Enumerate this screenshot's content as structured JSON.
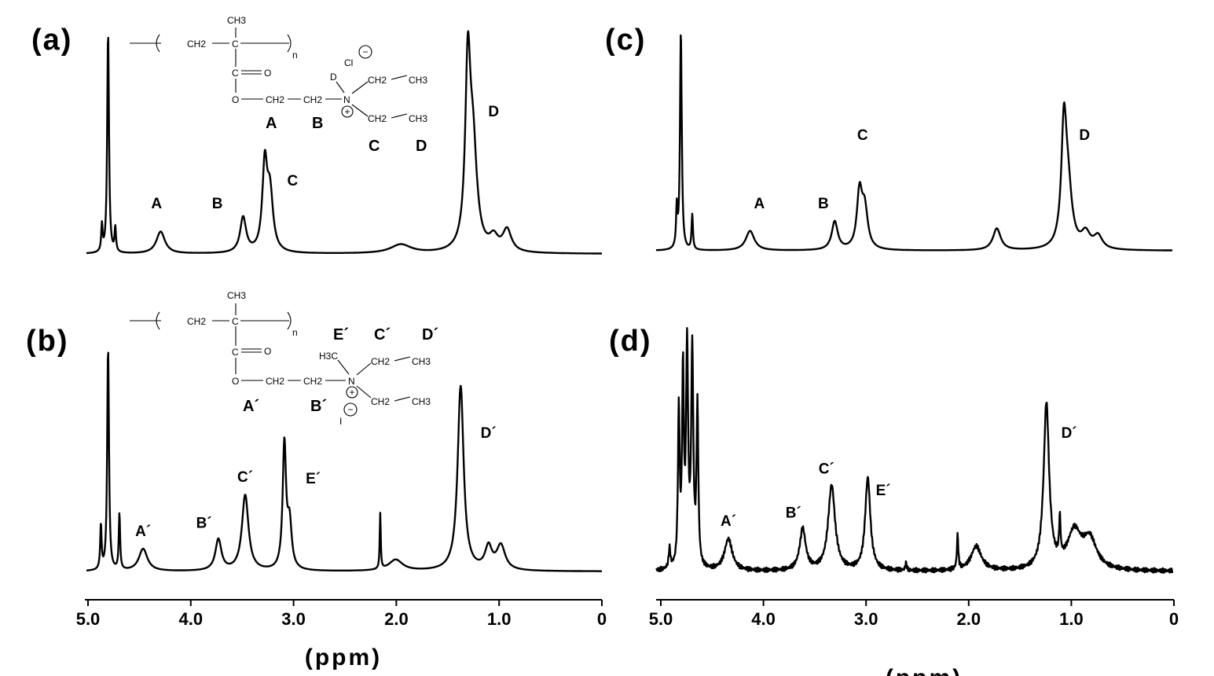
{
  "axis": {
    "title": "(ppm)",
    "ticks": [
      "5.0",
      "4.0",
      "3.0",
      "2.0",
      "1.0",
      "0"
    ],
    "tick_values": [
      5,
      4,
      3,
      2,
      1,
      0
    ]
  },
  "structures": {
    "a": {
      "ch3": "CH3",
      "ch2": "CH2",
      "c": "C",
      "n_sub": "n",
      "o_carbonyl": "O",
      "o_ester": "O",
      "n_atom": "N",
      "d_atom": "D",
      "ethyl_ch2": "CH2",
      "ethyl_ch3": "CH3",
      "counterion": "Cl",
      "plus": "+",
      "minus": "−",
      "letters": [
        "A",
        "B",
        "C",
        "D"
      ]
    },
    "b": {
      "ch3": "CH3",
      "ch2": "CH2",
      "c": "C",
      "n_sub": "n",
      "o_carbonyl": "O",
      "o_ester": "O",
      "n_atom": "N",
      "methyl": "H3C",
      "ethyl_ch2": "CH2",
      "ethyl_ch3": "CH3",
      "counterion": "I",
      "plus": "+",
      "minus": "−",
      "letters": [
        "E´",
        "C´",
        "D´",
        "A´",
        "B´"
      ]
    }
  },
  "chart_data": [
    {
      "panel": "(a)",
      "type": "line",
      "title": "",
      "xlabel": "",
      "ylabel": "",
      "xlim": [
        5.0,
        0
      ],
      "peaks": [
        {
          "ppm": 4.85,
          "height": 0.12,
          "width": 0.008
        },
        {
          "ppm": 4.79,
          "height": 1.0,
          "width": 0.01
        },
        {
          "ppm": 4.72,
          "height": 0.11,
          "width": 0.008
        },
        {
          "ppm": 4.28,
          "height": 0.1,
          "width": 0.05
        },
        {
          "ppm": 3.48,
          "height": 0.16,
          "width": 0.035
        },
        {
          "ppm": 3.27,
          "height": 0.38,
          "width": 0.028
        },
        {
          "ppm": 3.22,
          "height": 0.26,
          "width": 0.035
        },
        {
          "ppm": 1.95,
          "height": 0.04,
          "width": 0.12
        },
        {
          "ppm": 1.3,
          "height": 0.8,
          "width": 0.03
        },
        {
          "ppm": 1.25,
          "height": 0.45,
          "width": 0.045
        },
        {
          "ppm": 1.05,
          "height": 0.06,
          "width": 0.05
        },
        {
          "ppm": 0.92,
          "height": 0.1,
          "width": 0.05
        }
      ],
      "labels": [
        {
          "text": "A",
          "ppm": 4.32
        },
        {
          "text": "B",
          "ppm": 3.73
        },
        {
          "text": "C",
          "ppm": 3.0
        },
        {
          "text": "D",
          "ppm": 1.05
        }
      ]
    },
    {
      "panel": "(c)",
      "type": "line",
      "title": "",
      "xlabel": "",
      "ylabel": "",
      "xlim": [
        5.0,
        0
      ],
      "peaks": [
        {
          "ppm": 4.8,
          "height": 0.18,
          "width": 0.008
        },
        {
          "ppm": 4.76,
          "height": 1.0,
          "width": 0.01
        },
        {
          "ppm": 4.65,
          "height": 0.16,
          "width": 0.008
        },
        {
          "ppm": 4.09,
          "height": 0.09,
          "width": 0.05
        },
        {
          "ppm": 3.27,
          "height": 0.13,
          "width": 0.035
        },
        {
          "ppm": 3.03,
          "height": 0.25,
          "width": 0.03
        },
        {
          "ppm": 2.98,
          "height": 0.18,
          "width": 0.035
        },
        {
          "ppm": 1.7,
          "height": 0.1,
          "width": 0.045
        },
        {
          "ppm": 1.05,
          "height": 0.53,
          "width": 0.03
        },
        {
          "ppm": 1.01,
          "height": 0.25,
          "width": 0.045
        },
        {
          "ppm": 0.84,
          "height": 0.07,
          "width": 0.05
        },
        {
          "ppm": 0.72,
          "height": 0.06,
          "width": 0.05
        }
      ],
      "labels": [
        {
          "text": "A",
          "ppm": 4.0
        },
        {
          "text": "B",
          "ppm": 3.38
        },
        {
          "text": "C",
          "ppm": 3.0
        },
        {
          "text": "D",
          "ppm": 0.85
        }
      ]
    },
    {
      "panel": "(b)",
      "type": "line",
      "title": "",
      "xlabel": "",
      "ylabel": "",
      "xlim": [
        5.0,
        0
      ],
      "peaks": [
        {
          "ppm": 4.86,
          "height": 0.2,
          "width": 0.008
        },
        {
          "ppm": 4.79,
          "height": 1.0,
          "width": 0.01
        },
        {
          "ppm": 4.68,
          "height": 0.25,
          "width": 0.008
        },
        {
          "ppm": 4.45,
          "height": 0.1,
          "width": 0.05
        },
        {
          "ppm": 3.72,
          "height": 0.14,
          "width": 0.035
        },
        {
          "ppm": 3.46,
          "height": 0.34,
          "width": 0.038
        },
        {
          "ppm": 3.08,
          "height": 0.56,
          "width": 0.02
        },
        {
          "ppm": 3.03,
          "height": 0.2,
          "width": 0.025
        },
        {
          "ppm": 2.15,
          "height": 0.25,
          "width": 0.006
        },
        {
          "ppm": 2.0,
          "height": 0.05,
          "width": 0.08
        },
        {
          "ppm": 1.37,
          "height": 0.83,
          "width": 0.035
        },
        {
          "ppm": 1.1,
          "height": 0.1,
          "width": 0.04
        },
        {
          "ppm": 0.98,
          "height": 0.11,
          "width": 0.05
        }
      ],
      "labels": [
        {
          "text": "A´",
          "ppm": 4.45
        },
        {
          "text": "B´",
          "ppm": 3.86
        },
        {
          "text": "C´",
          "ppm": 3.46
        },
        {
          "text": "E´",
          "ppm": 2.8
        },
        {
          "text": "D´",
          "ppm": 1.1
        }
      ]
    },
    {
      "panel": "(d)",
      "type": "line",
      "title": "",
      "xlabel": "",
      "ylabel": "",
      "xlim": [
        5.0,
        0
      ],
      "peaks": [
        {
          "ppm": 4.87,
          "height": 0.08,
          "width": 0.01
        },
        {
          "ppm": 4.78,
          "height": 0.64,
          "width": 0.01
        },
        {
          "ppm": 4.74,
          "height": 0.78,
          "width": 0.01
        },
        {
          "ppm": 4.7,
          "height": 0.88,
          "width": 0.012
        },
        {
          "ppm": 4.65,
          "height": 0.88,
          "width": 0.012
        },
        {
          "ppm": 4.6,
          "height": 0.65,
          "width": 0.01
        },
        {
          "ppm": 4.3,
          "height": 0.13,
          "width": 0.045
        },
        {
          "ppm": 3.58,
          "height": 0.17,
          "width": 0.035
        },
        {
          "ppm": 3.3,
          "height": 0.35,
          "width": 0.04
        },
        {
          "ppm": 2.95,
          "height": 0.38,
          "width": 0.03
        },
        {
          "ppm": 2.58,
          "height": 0.03,
          "width": 0.008
        },
        {
          "ppm": 2.08,
          "height": 0.14,
          "width": 0.008
        },
        {
          "ppm": 1.9,
          "height": 0.1,
          "width": 0.06
        },
        {
          "ppm": 1.22,
          "height": 0.68,
          "width": 0.032
        },
        {
          "ppm": 1.09,
          "height": 0.16,
          "width": 0.008
        },
        {
          "ppm": 0.95,
          "height": 0.15,
          "width": 0.08
        },
        {
          "ppm": 0.8,
          "height": 0.12,
          "width": 0.08
        }
      ],
      "labels": [
        {
          "text": "A´",
          "ppm": 4.3
        },
        {
          "text": "B´",
          "ppm": 3.67
        },
        {
          "text": "C´",
          "ppm": 3.35
        },
        {
          "text": "E´",
          "ppm": 2.8
        },
        {
          "text": "D´",
          "ppm": 1.0
        }
      ]
    }
  ]
}
